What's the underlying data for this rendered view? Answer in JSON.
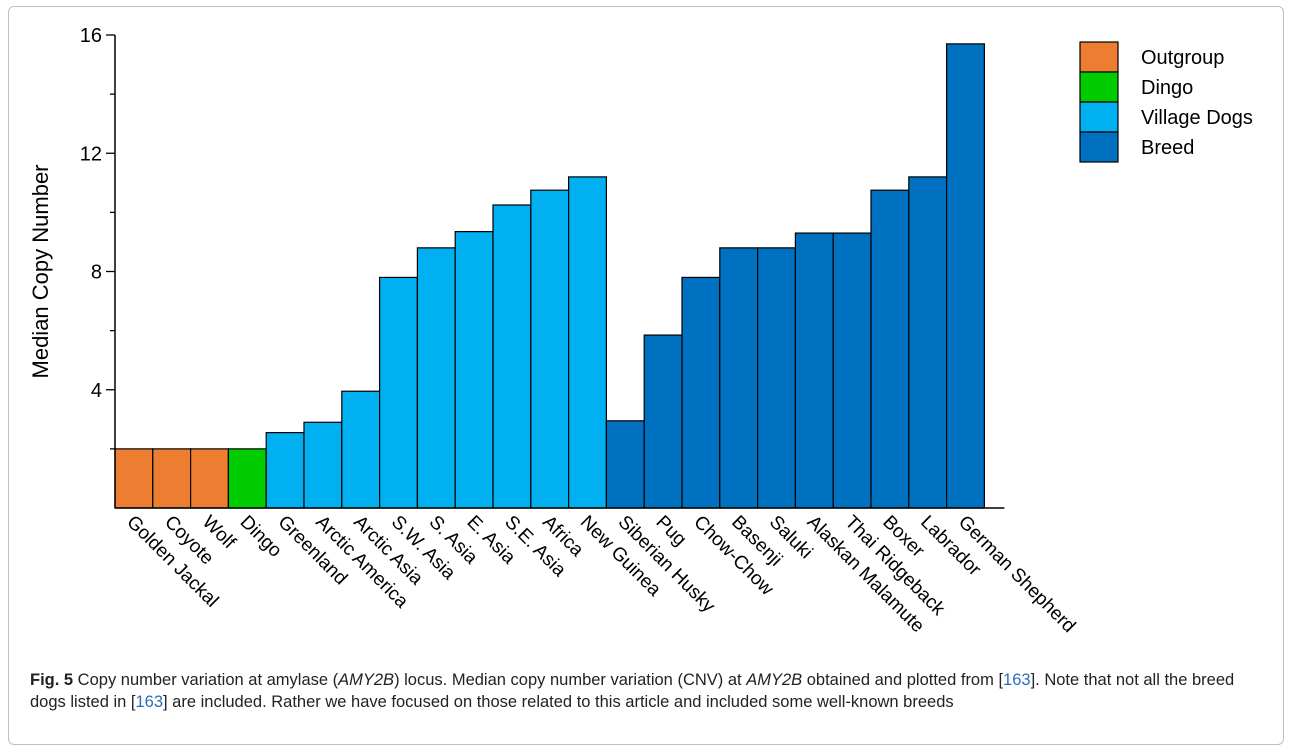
{
  "chart_data": {
    "type": "bar",
    "ylabel": "Median Copy Number",
    "xlabel": "",
    "ylim": [
      0,
      16
    ],
    "yticks": [
      4,
      8,
      12,
      16
    ],
    "legend_placement": "top-right",
    "groups": [
      {
        "name": "Outgroup",
        "color": "#ed7d31"
      },
      {
        "name": "Dingo",
        "color": "#00cc00"
      },
      {
        "name": "Village Dogs",
        "color": "#00b0f0"
      },
      {
        "name": "Breed",
        "color": "#0070c0"
      }
    ],
    "categories": [
      "Golden Jackal",
      "Coyote",
      "Wolf",
      "Dingo",
      "Greenland",
      "Arctic America",
      "Arctic Asia",
      "S.W. Asia",
      "S. Asia",
      "E. Asia",
      "S.E. Asia",
      "Africa",
      "New Guinea",
      "Siberian Husky",
      "Pug",
      "Chow-Chow",
      "Basenji",
      "Saluki",
      "Alaskan Malamute",
      "Thai Ridgeback",
      "Boxer",
      "Labrador",
      "German Shepherd"
    ],
    "values": [
      2,
      2,
      2,
      2,
      2.55,
      2.9,
      3.95,
      7.8,
      8.8,
      9.35,
      10.25,
      10.75,
      11.2,
      2.95,
      5.85,
      7.8,
      8.8,
      8.8,
      9.3,
      9.3,
      10.75,
      11.2,
      15.7
    ],
    "bar_group": [
      "Outgroup",
      "Outgroup",
      "Outgroup",
      "Dingo",
      "Village Dogs",
      "Village Dogs",
      "Village Dogs",
      "Village Dogs",
      "Village Dogs",
      "Village Dogs",
      "Village Dogs",
      "Village Dogs",
      "Village Dogs",
      "Breed",
      "Breed",
      "Breed",
      "Breed",
      "Breed",
      "Breed",
      "Breed",
      "Breed",
      "Breed",
      "Breed"
    ]
  },
  "caption": {
    "fig_label": "Fig. 5",
    "t1": " Copy number variation at amylase (",
    "gene1": "AMY2B",
    "t2": ") locus. Median copy number variation (CNV) at ",
    "gene2": "AMY2B",
    "t3": " obtained and plotted from [",
    "ref1": "163",
    "t4": "]. Note that not all the breed dogs listed in [",
    "ref2": "163",
    "t5": "] are included. Rather we have focused on those related to this article and included some well-known breeds"
  }
}
